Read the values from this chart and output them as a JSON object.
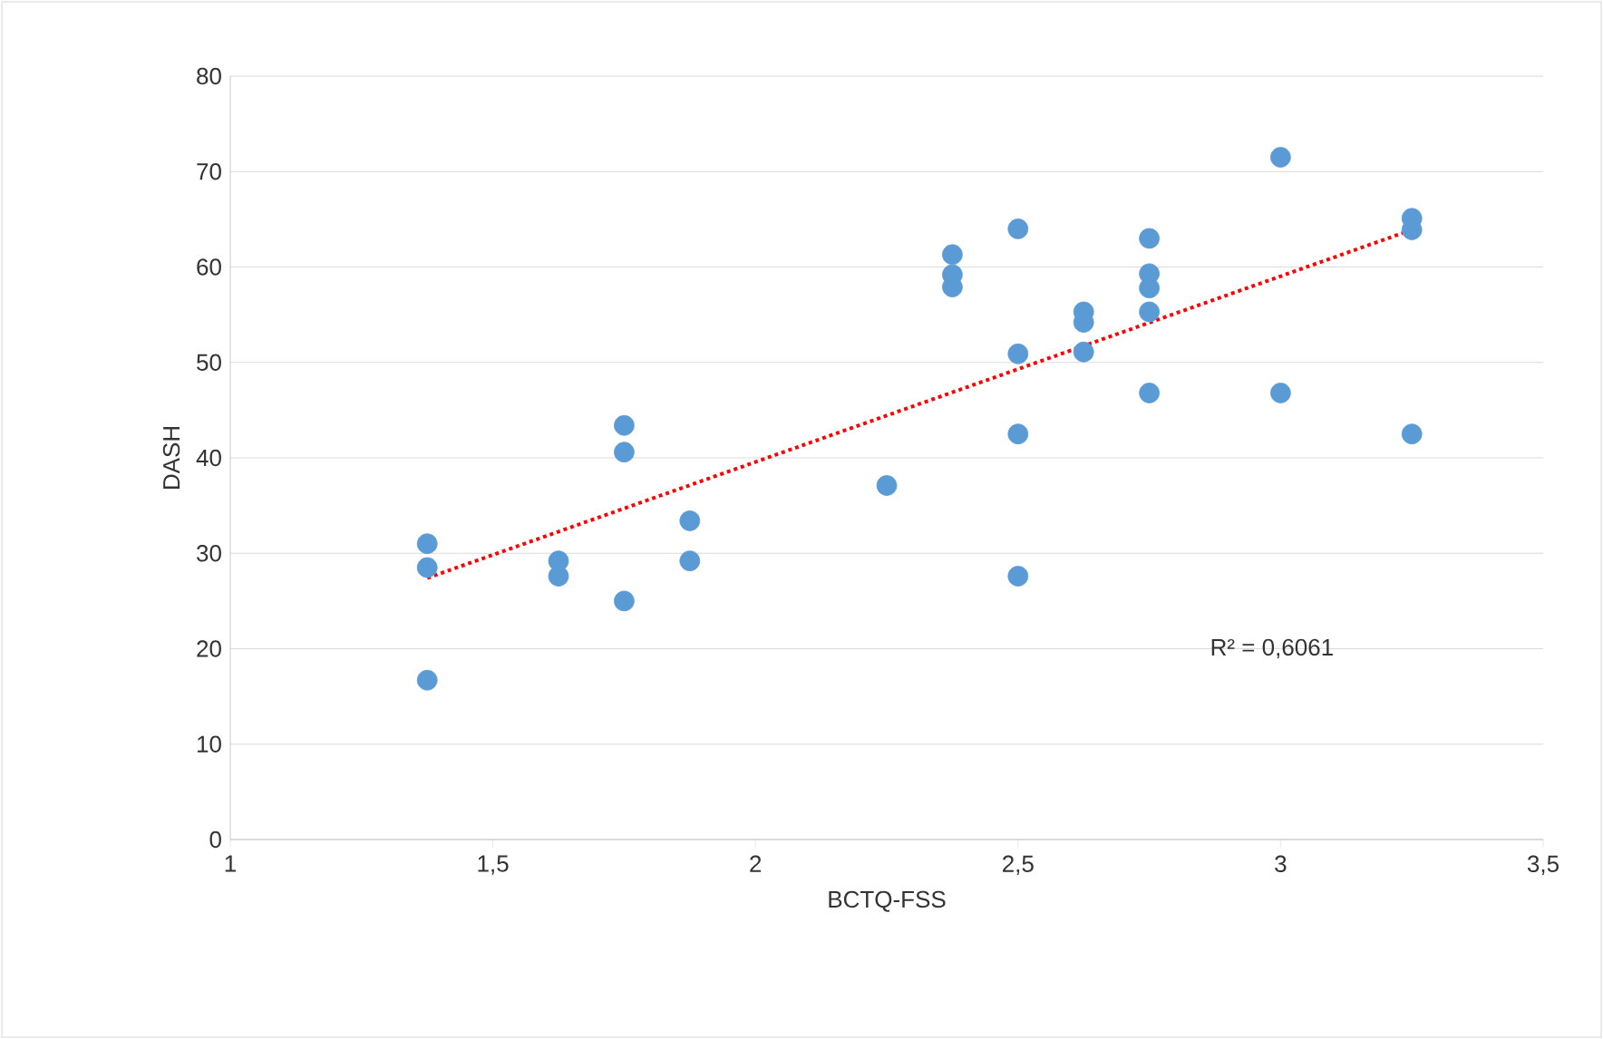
{
  "chart_data": {
    "type": "scatter",
    "xlabel": "BCTQ-FSS",
    "ylabel": "DASH",
    "xlim": [
      1,
      3.5
    ],
    "ylim": [
      0,
      80
    ],
    "xticks": [
      1,
      {
        "value": 1.5,
        "label": "1,5"
      },
      2,
      {
        "value": 2.5,
        "label": "2,5"
      },
      3,
      {
        "value": 3.5,
        "label": "3,5"
      }
    ],
    "yticks": [
      0,
      10,
      20,
      30,
      40,
      50,
      60,
      70,
      80
    ],
    "grid": "y",
    "marker": "circle",
    "annotations": [
      "R² = 0,6061"
    ],
    "series": [
      {
        "color": "#5b9bd5",
        "x": [
          1.375,
          1.375,
          1.375,
          1.625,
          1.625,
          1.75,
          1.75,
          1.75,
          1.875,
          1.875,
          2.25,
          2.375,
          2.375,
          2.375,
          2.5,
          2.5,
          2.5,
          2.5,
          2.625,
          2.625,
          2.625,
          2.75,
          2.75,
          2.75,
          2.75,
          2.75,
          3,
          3,
          3.25,
          3.25,
          3.25
        ],
        "values": [
          31,
          28.5,
          16.7,
          29.2,
          27.6,
          43.4,
          40.6,
          25,
          33.4,
          29.2,
          37.1,
          61.3,
          59.2,
          57.9,
          64,
          50.9,
          42.5,
          27.6,
          55.3,
          54.2,
          51.1,
          63,
          59.3,
          57.8,
          55.3,
          46.8,
          71.5,
          46.8,
          65.1,
          63.9,
          42.5
        ]
      },
      {
        "type": "line",
        "color": "#ff0000",
        "marker": "none",
        "line_style": "dotted",
        "x": [
          1.375,
          3.25
        ],
        "values": [
          27.4,
          63.9
        ]
      }
    ]
  }
}
